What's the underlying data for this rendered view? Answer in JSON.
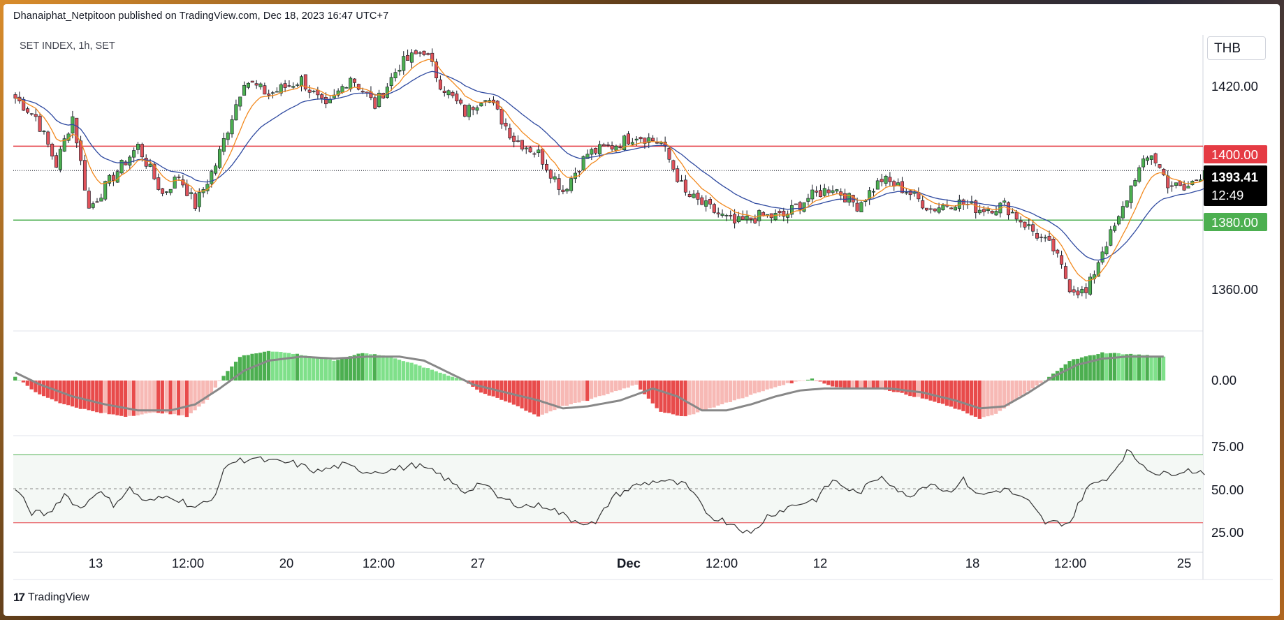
{
  "header": {
    "text": "Dhanaiphat_Netpitoon published on TradingView.com, Dec 18, 2023 16:47 UTC+7"
  },
  "symbol_label": "SET INDEX, 1h, SET",
  "currency_label": "THB",
  "footer": {
    "brand": "TradingView",
    "logo_mark": "17"
  },
  "colors": {
    "up": "#4caf50",
    "down": "#e0525a",
    "ema_fast": "#f2891e",
    "ema_slow": "#2f4aa0",
    "resistance": "#e53b44",
    "support": "#4caf50",
    "hist_up_strong": "#4caf50",
    "hist_up_weak": "#7fe08a",
    "hist_down_strong": "#e84b4b",
    "hist_down_weak": "#f7b9b5",
    "signal": "#888888",
    "rsi": "#333333"
  },
  "price_axis": {
    "labels": [
      "1420.00",
      "1360.00"
    ]
  },
  "price_tags": {
    "resistance": {
      "value": "1400.00"
    },
    "support": {
      "value": "1380.00"
    },
    "last": {
      "value": "1393.41",
      "countdown": "12:49"
    }
  },
  "macd_axis": {
    "labels": [
      "0.00"
    ]
  },
  "rsi_axis": {
    "labels": [
      "75.00",
      "50.00",
      "25.00"
    ]
  },
  "time_axis": {
    "labels": [
      "13",
      "12:00",
      "20",
      "12:00",
      "27",
      "Dec",
      "12:00",
      "12",
      "18",
      "12:00",
      "25"
    ]
  },
  "chart_data": [
    {
      "type": "candlestick",
      "title": "SET INDEX, 1h, SET",
      "ylim": [
        1350,
        1432
      ],
      "horizontal_lines": [
        {
          "value": 1400,
          "label": "1400.00"
        },
        {
          "value": 1380,
          "label": "1380.00"
        }
      ],
      "last_price": 1393.41,
      "close_path": [
        [
          0,
          1413
        ],
        [
          5,
          1408
        ],
        [
          10,
          1395
        ],
        [
          14,
          1408
        ],
        [
          18,
          1383
        ],
        [
          24,
          1392
        ],
        [
          30,
          1400
        ],
        [
          36,
          1387
        ],
        [
          40,
          1392
        ],
        [
          44,
          1384
        ],
        [
          49,
          1395
        ],
        [
          56,
          1418
        ],
        [
          62,
          1414
        ],
        [
          70,
          1418
        ],
        [
          76,
          1410
        ],
        [
          82,
          1419
        ],
        [
          88,
          1411
        ],
        [
          94,
          1422
        ],
        [
          100,
          1426
        ],
        [
          104,
          1417
        ],
        [
          110,
          1409
        ],
        [
          115,
          1414
        ],
        [
          122,
          1402
        ],
        [
          128,
          1398
        ],
        [
          134,
          1388
        ],
        [
          140,
          1398
        ],
        [
          146,
          1400
        ],
        [
          152,
          1403
        ],
        [
          158,
          1401
        ],
        [
          164,
          1387
        ],
        [
          170,
          1383
        ],
        [
          176,
          1379
        ],
        [
          182,
          1381
        ],
        [
          188,
          1381
        ],
        [
          194,
          1386
        ],
        [
          200,
          1389
        ],
        [
          206,
          1384
        ],
        [
          212,
          1391
        ],
        [
          218,
          1388
        ],
        [
          224,
          1383
        ],
        [
          230,
          1385
        ],
        [
          236,
          1383
        ],
        [
          242,
          1384
        ],
        [
          248,
          1378
        ],
        [
          254,
          1372
        ],
        [
          258,
          1362
        ],
        [
          262,
          1360
        ],
        [
          266,
          1372
        ],
        [
          270,
          1380
        ],
        [
          274,
          1392
        ],
        [
          278,
          1398
        ],
        [
          282,
          1390
        ],
        [
          286,
          1388
        ],
        [
          291,
          1393.41
        ]
      ],
      "series": [
        {
          "name": "EMA fast"
        },
        {
          "name": "EMA slow"
        }
      ]
    },
    {
      "type": "bar",
      "title": "",
      "zero_label": "0.00",
      "histogram_path": [
        [
          0,
          2
        ],
        [
          5,
          -6
        ],
        [
          12,
          -12
        ],
        [
          20,
          -16
        ],
        [
          27,
          -18
        ],
        [
          35,
          -16
        ],
        [
          42,
          -18
        ],
        [
          47,
          -10
        ],
        [
          50,
          0
        ],
        [
          55,
          12
        ],
        [
          62,
          15
        ],
        [
          70,
          13
        ],
        [
          78,
          10
        ],
        [
          85,
          14
        ],
        [
          92,
          12
        ],
        [
          98,
          8
        ],
        [
          104,
          4
        ],
        [
          110,
          0
        ],
        [
          114,
          -6
        ],
        [
          122,
          -12
        ],
        [
          128,
          -18
        ],
        [
          134,
          -13
        ],
        [
          140,
          -10
        ],
        [
          146,
          -6
        ],
        [
          152,
          -2
        ],
        [
          158,
          -16
        ],
        [
          164,
          -18
        ],
        [
          170,
          -14
        ],
        [
          176,
          -10
        ],
        [
          182,
          -6
        ],
        [
          188,
          -2
        ],
        [
          195,
          1
        ],
        [
          200,
          -3
        ],
        [
          206,
          -4
        ],
        [
          212,
          -4
        ],
        [
          218,
          -7
        ],
        [
          224,
          -10
        ],
        [
          230,
          -14
        ],
        [
          236,
          -19
        ],
        [
          240,
          -17
        ],
        [
          246,
          -8
        ],
        [
          252,
          0
        ],
        [
          258,
          10
        ],
        [
          266,
          14
        ],
        [
          275,
          13
        ],
        [
          281,
          12
        ]
      ],
      "signal_path": [
        [
          0,
          4
        ],
        [
          6,
          -2
        ],
        [
          14,
          -8
        ],
        [
          22,
          -12
        ],
        [
          30,
          -15
        ],
        [
          38,
          -15
        ],
        [
          44,
          -12
        ],
        [
          50,
          -4
        ],
        [
          56,
          5
        ],
        [
          62,
          10
        ],
        [
          70,
          12
        ],
        [
          78,
          11
        ],
        [
          86,
          12
        ],
        [
          94,
          12
        ],
        [
          100,
          10
        ],
        [
          106,
          4
        ],
        [
          112,
          -2
        ],
        [
          120,
          -6
        ],
        [
          128,
          -10
        ],
        [
          134,
          -14
        ],
        [
          140,
          -13
        ],
        [
          148,
          -10
        ],
        [
          156,
          -4
        ],
        [
          162,
          -8
        ],
        [
          168,
          -15
        ],
        [
          174,
          -15
        ],
        [
          180,
          -12
        ],
        [
          186,
          -8
        ],
        [
          192,
          -5
        ],
        [
          198,
          -4
        ],
        [
          206,
          -4
        ],
        [
          214,
          -4
        ],
        [
          222,
          -6
        ],
        [
          230,
          -10
        ],
        [
          236,
          -14
        ],
        [
          242,
          -13
        ],
        [
          248,
          -6
        ],
        [
          254,
          2
        ],
        [
          260,
          8
        ],
        [
          266,
          11
        ],
        [
          272,
          12
        ],
        [
          281,
          12
        ]
      ]
    },
    {
      "type": "line",
      "title": "",
      "ylim": [
        20,
        80
      ],
      "bands": [
        {
          "value": 70
        },
        {
          "value": 50
        },
        {
          "value": 30
        }
      ],
      "rsi_path": [
        [
          0,
          50
        ],
        [
          4,
          36
        ],
        [
          8,
          35
        ],
        [
          12,
          47
        ],
        [
          16,
          38
        ],
        [
          20,
          49
        ],
        [
          24,
          41
        ],
        [
          28,
          50
        ],
        [
          32,
          42
        ],
        [
          38,
          46
        ],
        [
          44,
          39
        ],
        [
          48,
          43
        ],
        [
          52,
          65
        ],
        [
          58,
          68
        ],
        [
          62,
          66
        ],
        [
          68,
          65
        ],
        [
          74,
          60
        ],
        [
          80,
          64
        ],
        [
          86,
          60
        ],
        [
          92,
          61
        ],
        [
          98,
          64
        ],
        [
          104,
          58
        ],
        [
          110,
          48
        ],
        [
          114,
          54
        ],
        [
          118,
          45
        ],
        [
          124,
          40
        ],
        [
          130,
          40
        ],
        [
          136,
          32
        ],
        [
          142,
          29
        ],
        [
          146,
          45
        ],
        [
          152,
          52
        ],
        [
          158,
          55
        ],
        [
          164,
          52
        ],
        [
          170,
          34
        ],
        [
          176,
          29
        ],
        [
          180,
          23
        ],
        [
          184,
          34
        ],
        [
          190,
          40
        ],
        [
          196,
          44
        ],
        [
          200,
          55
        ],
        [
          206,
          47
        ],
        [
          212,
          58
        ],
        [
          218,
          45
        ],
        [
          224,
          54
        ],
        [
          228,
          48
        ],
        [
          232,
          55
        ],
        [
          236,
          46
        ],
        [
          242,
          50
        ],
        [
          248,
          42
        ],
        [
          252,
          30
        ],
        [
          258,
          30
        ],
        [
          262,
          50
        ],
        [
          268,
          58
        ],
        [
          272,
          72
        ],
        [
          276,
          64
        ],
        [
          280,
          58
        ],
        [
          286,
          61
        ],
        [
          291,
          60
        ]
      ]
    }
  ]
}
